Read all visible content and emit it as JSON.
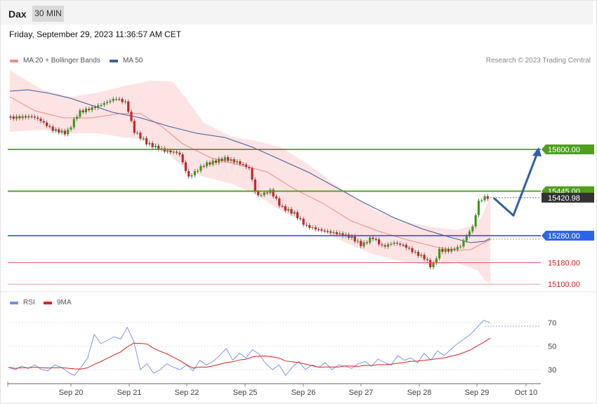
{
  "header": {
    "symbol": "Dax",
    "timeframe": "30 MIN"
  },
  "datetime": "Friday, September 29, 2023 11:36:57 AM CET",
  "legend": {
    "main": [
      {
        "label": "MA 20 + Bollinger Bands",
        "color": "#f08a8a"
      },
      {
        "label": "MA 50",
        "color": "#3a5fa0"
      }
    ],
    "rsi": [
      {
        "label": "RSI",
        "color": "#6f8fe0"
      },
      {
        "label": "9MA",
        "color": "#e02020"
      }
    ]
  },
  "copyright": "Research © 2023 Trading Central",
  "chart_data": {
    "type": "candlestick",
    "xlabels": [
      "Sep 20",
      "Sep 21",
      "Sep 22",
      "Sep 25",
      "Sep 26",
      "Sep 27",
      "Sep 28",
      "Sep 29",
      "Oct 10"
    ],
    "price_ylim": [
      15088,
      15730
    ],
    "levels": [
      {
        "label": "15600.00",
        "value": 15600,
        "color": "#4fa01a",
        "kind": "resistance"
      },
      {
        "label": "15445.00",
        "value": 15445,
        "color": "#4fa01a",
        "kind": "resistance"
      },
      {
        "label": "15420.98",
        "value": 15420.98,
        "color": "#333333",
        "kind": "last"
      },
      {
        "label": "15280.00",
        "value": 15280,
        "color": "#2a66e8",
        "kind": "pivot"
      },
      {
        "label": "15180.00",
        "value": 15180,
        "color": "#e06060",
        "kind": "support"
      },
      {
        "label": "15100.00",
        "value": 15100,
        "color": "#f0a0a0",
        "kind": "support"
      }
    ],
    "forecast_path": [
      15420,
      15355,
      15600
    ],
    "rsi": {
      "ylim": [
        10,
        90
      ],
      "levels": [
        70,
        50,
        30
      ],
      "tick_labels": [
        "70",
        "50",
        "30"
      ]
    }
  }
}
